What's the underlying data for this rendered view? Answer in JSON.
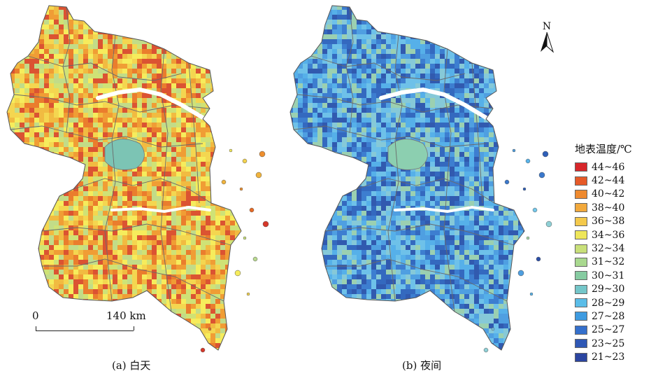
{
  "panels": [
    {
      "caption": "(a) 白天",
      "palette": [
        "#f6ec5c",
        "#f3d24d",
        "#f0b33c",
        "#ee8f2e",
        "#e76a25",
        "#d6382a",
        "#c8e07a",
        "#b9d98f"
      ]
    },
    {
      "caption": "(b) 夜间",
      "palette": [
        "#4f9fe0",
        "#57b3ea",
        "#3a78cc",
        "#2f5fb8",
        "#73c7ea",
        "#8fd0d6",
        "#a8d8a8",
        "#2b4ea6"
      ]
    }
  ],
  "scalebar": {
    "start": "0",
    "end": "140 km"
  },
  "north_arrow": {
    "letter": "N"
  },
  "legend": {
    "title": "地表温度/℃",
    "items": [
      {
        "label": "44~46",
        "color": "#d7262a"
      },
      {
        "label": "42~44",
        "color": "#e65a28"
      },
      {
        "label": "40~42",
        "color": "#ef8a2f"
      },
      {
        "label": "38~40",
        "color": "#f2a93c"
      },
      {
        "label": "36~38",
        "color": "#f4c94b"
      },
      {
        "label": "34~36",
        "color": "#eee65a"
      },
      {
        "label": "32~34",
        "color": "#c9e07a"
      },
      {
        "label": "31~32",
        "color": "#a9d98f"
      },
      {
        "label": "30~31",
        "color": "#86cba1"
      },
      {
        "label": "29~30",
        "color": "#74c6c9"
      },
      {
        "label": "28~29",
        "color": "#5bbde8"
      },
      {
        "label": "27~28",
        "color": "#3e9be0"
      },
      {
        "label": "25~27",
        "color": "#3570cc"
      },
      {
        "label": "23~25",
        "color": "#2f58b5"
      },
      {
        "label": "21~23",
        "color": "#2b45a0"
      }
    ]
  }
}
